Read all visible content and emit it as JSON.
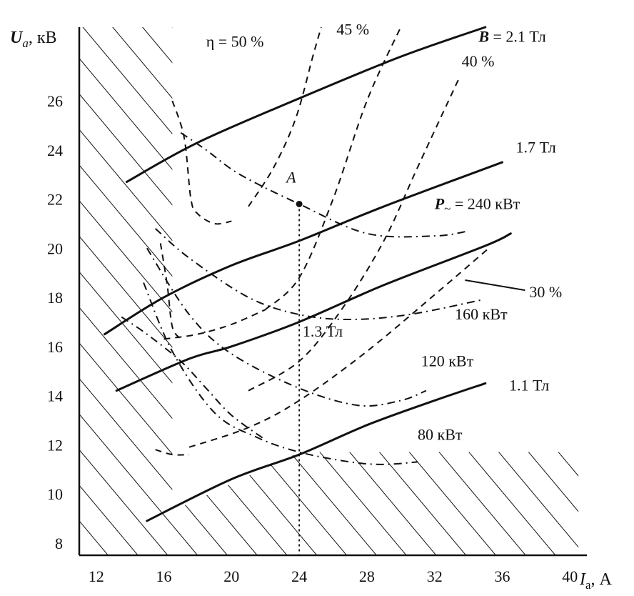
{
  "chart_data": {
    "type": "line",
    "title": "",
    "xlabel": "I",
    "xlabel_sub": "a",
    "xlabel_unit": ", А",
    "ylabel": "U",
    "ylabel_sub": "a",
    "ylabel_unit": ", кВ",
    "xlim": [
      11,
      41
    ],
    "ylim": [
      7.5,
      29
    ],
    "xticks": [
      12,
      16,
      20,
      24,
      28,
      32,
      36,
      40
    ],
    "yticks": [
      8,
      10,
      12,
      14,
      16,
      18,
      20,
      22,
      24,
      26
    ],
    "grid": false,
    "forbidden_regions": [
      {
        "name": "left",
        "polygon": [
          [
            11,
            7.5
          ],
          [
            11,
            29
          ],
          [
            16.5,
            29
          ],
          [
            16.5,
            7.5
          ]
        ]
      },
      {
        "name": "bottom",
        "polygon": [
          [
            16.5,
            7.5
          ],
          [
            16.5,
            9.3
          ],
          [
            24,
            11.7
          ],
          [
            40.5,
            11.7
          ],
          [
            40.5,
            7.5
          ]
        ]
      }
    ],
    "magnetic_field_lines": [
      {
        "name": "B = 2.1 Тл",
        "label_prefix": "B",
        "label_rest": " = 2.1 Тл",
        "label_at": [
          34.6,
          28.4
        ],
        "points": [
          [
            13.8,
            22.7
          ],
          [
            18.0,
            24.3
          ],
          [
            24.0,
            26.1
          ],
          [
            30.0,
            27.8
          ],
          [
            35.0,
            29.0
          ]
        ]
      },
      {
        "name": "1.7 Тл",
        "label_at": [
          36.8,
          23.9
        ],
        "points": [
          [
            12.5,
            16.5
          ],
          [
            16.0,
            18.0
          ],
          [
            20.0,
            19.3
          ],
          [
            24.0,
            20.3
          ],
          [
            29.0,
            21.7
          ],
          [
            36.0,
            23.5
          ]
        ]
      },
      {
        "name": "1.3 Тл",
        "label_at": [
          24.2,
          16.4
        ],
        "points": [
          [
            13.2,
            14.2
          ],
          [
            17.5,
            15.5
          ],
          [
            20.0,
            16.0
          ],
          [
            24.0,
            17.0
          ],
          [
            29.0,
            18.5
          ],
          [
            35.0,
            20.1
          ],
          [
            36.5,
            20.6
          ]
        ]
      },
      {
        "name": "1.1 Тл",
        "label_at": [
          36.4,
          14.2
        ],
        "points": [
          [
            15.0,
            8.9
          ],
          [
            20.0,
            10.6
          ],
          [
            24.0,
            11.6
          ],
          [
            28.0,
            12.8
          ],
          [
            32.0,
            13.8
          ],
          [
            35.0,
            14.5
          ]
        ]
      }
    ],
    "efficiency_lines": [
      {
        "name": "η = 50 %",
        "label_at": [
          18.5,
          28.2
        ],
        "points": [
          [
            21.0,
            21.7
          ],
          [
            22.5,
            23.3
          ],
          [
            23.8,
            25.3
          ],
          [
            24.8,
            27.8
          ],
          [
            25.3,
            29.0
          ]
        ]
      },
      {
        "name": "45 %",
        "label_at": [
          26.2,
          28.7
        ],
        "points": [
          [
            22.0,
            17.5
          ],
          [
            24.0,
            18.8
          ],
          [
            26.0,
            22.0
          ],
          [
            28.0,
            26.0
          ],
          [
            30.0,
            29.0
          ]
        ]
      },
      {
        "name": "40 %",
        "label_at": [
          33.6,
          27.4
        ],
        "points": [
          [
            21.0,
            14.2
          ],
          [
            24.0,
            15.4
          ],
          [
            26.5,
            17.5
          ],
          [
            29.0,
            20.3
          ],
          [
            31.0,
            23.3
          ],
          [
            33.5,
            27.0
          ]
        ]
      },
      {
        "name": "30 %",
        "label_at": [
          37.6,
          18.0
        ],
        "points": [
          [
            17.5,
            11.9
          ],
          [
            21.0,
            12.7
          ],
          [
            24.0,
            13.8
          ],
          [
            28.0,
            15.8
          ],
          [
            32.5,
            18.4
          ],
          [
            35.2,
            20.0
          ]
        ]
      },
      {
        "name": "curve-d",
        "points": [
          [
            16.0,
            16.3
          ],
          [
            18.0,
            16.5
          ],
          [
            20.0,
            16.9
          ],
          [
            22.0,
            17.5
          ]
        ]
      },
      {
        "name": "curve-e",
        "points": [
          [
            16.5,
            26.0
          ],
          [
            17.2,
            24.5
          ],
          [
            17.6,
            22.0
          ],
          [
            18.0,
            21.4
          ],
          [
            19.0,
            21.0
          ],
          [
            20.0,
            21.1
          ]
        ]
      },
      {
        "name": "curve-f",
        "points": [
          [
            15.8,
            20.2
          ],
          [
            16.2,
            18.5
          ],
          [
            16.5,
            16.8
          ],
          [
            17.0,
            16.3
          ]
        ]
      },
      {
        "name": "curve-g",
        "points": [
          [
            15.5,
            11.8
          ],
          [
            16.5,
            11.6
          ],
          [
            17.5,
            11.6
          ]
        ]
      }
    ],
    "power_lines": [
      {
        "name": "P~ = 240 кВт",
        "label_main": "P",
        "label_sub": "~",
        "label_rest": " = 240 кВт",
        "label_at": [
          32.0,
          21.6
        ],
        "points": [
          [
            17.0,
            24.7
          ],
          [
            18.5,
            24.0
          ],
          [
            20.5,
            23.0
          ],
          [
            24.0,
            21.8
          ],
          [
            28.0,
            20.6
          ],
          [
            32.0,
            20.5
          ],
          [
            34.0,
            20.7
          ]
        ]
      },
      {
        "name": "160 кВт",
        "label_at": [
          33.2,
          17.1
        ],
        "points": [
          [
            15.5,
            20.8
          ],
          [
            17.5,
            19.6
          ],
          [
            21.0,
            18.0
          ],
          [
            24.0,
            17.3
          ],
          [
            27.0,
            17.1
          ],
          [
            30.5,
            17.3
          ],
          [
            34.8,
            17.9
          ]
        ]
      },
      {
        "name": "120 кВт",
        "label_at": [
          31.2,
          15.2
        ],
        "points": [
          [
            15.0,
            20.0
          ],
          [
            17.5,
            17.3
          ],
          [
            20.0,
            15.7
          ],
          [
            24.0,
            14.3
          ],
          [
            27.5,
            13.6
          ],
          [
            30.0,
            13.8
          ],
          [
            31.5,
            14.2
          ]
        ]
      },
      {
        "name": "80 кВт",
        "label_at": [
          31.0,
          12.2
        ],
        "points": [
          [
            14.8,
            18.6
          ],
          [
            16.5,
            15.8
          ],
          [
            19.0,
            13.3
          ],
          [
            21.5,
            12.3
          ],
          [
            24.0,
            11.7
          ],
          [
            27.0,
            11.3
          ],
          [
            29.0,
            11.2
          ],
          [
            31.0,
            11.3
          ]
        ]
      },
      {
        "name": "outer",
        "points": [
          [
            13.5,
            17.2
          ],
          [
            15.0,
            16.5
          ],
          [
            17.0,
            15.4
          ],
          [
            18.5,
            14.3
          ],
          [
            20.0,
            13.2
          ],
          [
            22.0,
            12.2
          ]
        ]
      }
    ],
    "operating_point": {
      "label": "A",
      "x": 24,
      "y": 21.8
    }
  }
}
